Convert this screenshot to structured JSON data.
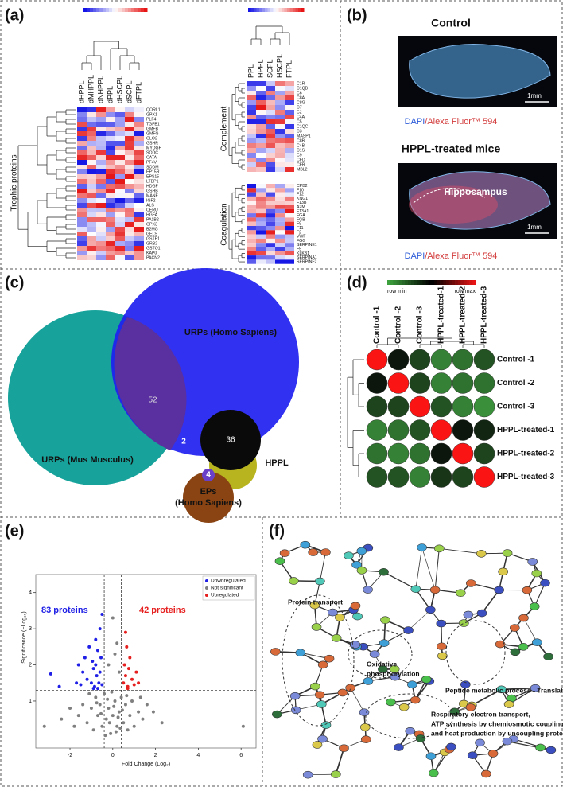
{
  "panel_a": {
    "label": "(a)",
    "left": {
      "group": "Trophic proteins",
      "columns": [
        "dHPPL",
        "dMHPPL",
        "dNHPPL",
        "dPPL",
        "dHSCPL",
        "dSCPL",
        "dFTPL"
      ],
      "rows": [
        "QORL1",
        "GPX1",
        "PLF4",
        "TGFB1",
        "GMFB",
        "GMFG",
        "GLO2",
        "GSHR",
        "MYDGF",
        "SODC",
        "CATA",
        "PF4V",
        "SODM",
        "EP15R",
        "EPS15",
        "LTBP1",
        "HDGF",
        "GSHB",
        "MANF",
        "IGF2",
        "ALS",
        "CERU",
        "HGFA",
        "PA1B2",
        "GPX3",
        "B2MG",
        "GELS",
        "GSTP1",
        "GRB2",
        "GSTO1",
        "KAP0",
        "PACN2"
      ]
    },
    "right": {
      "columns": [
        "PPL",
        "HPPL",
        "SCPL",
        "HSCPL",
        "FTPL"
      ],
      "complement": {
        "group": "Complement",
        "rows": [
          "C1R",
          "C1QB",
          "C6",
          "C8A",
          "C8G",
          "C7",
          "C2",
          "C4A",
          "C5",
          "C1QC",
          "C3",
          "MASP1",
          "C8B",
          "C4B",
          "C1S",
          "C9",
          "CFD",
          "CFB",
          "MBL2"
        ]
      },
      "coagulation": {
        "group": "Coagulation",
        "rows": [
          "CPB2",
          "F10",
          "F12",
          "KNG1",
          "F13B",
          "A2M",
          "F13A1",
          "FGA",
          "FGB",
          "F9",
          "F11",
          "F2",
          "VWF",
          "FGG",
          "SERPINE1",
          "F5",
          "KLKB1",
          "SERPINA1",
          "SERPINF2"
        ]
      }
    }
  },
  "panel_b": {
    "label": "(b)",
    "top": {
      "title": "Control",
      "stain_a": "DAPI",
      "stain_b": "/Alexa Fluor™ 594",
      "scale": "1mm"
    },
    "bottom": {
      "title": "HPPL-treated mice",
      "region": "Hippocampus",
      "stain_a": "DAPI",
      "stain_b": "/Alexa Fluor™ 594",
      "scale": "1mm"
    }
  },
  "panel_c": {
    "label": "(c)",
    "sets": [
      {
        "label": [
          "URPs (Homo Sapiens)"
        ]
      },
      {
        "label": [
          "URPs (Mus Musculus)"
        ]
      },
      {
        "label": [
          "HPPL"
        ]
      },
      {
        "label": [
          "EPs",
          "(Homo Sapiens)"
        ]
      }
    ],
    "counts": [
      52,
      2,
      36,
      4
    ]
  },
  "panel_d": {
    "label": "(d)",
    "legend_min": "row min",
    "legend_max": "row max",
    "samples": [
      "Control -1",
      "Control -2",
      "Control -3",
      "HPPL-treated-1",
      "HPPL-treated-2",
      "HPPL-treated-3"
    ],
    "matrix": [
      [
        1,
        0.5,
        0.35,
        0.15,
        0.2,
        0.3
      ],
      [
        0.5,
        1,
        0.35,
        0.15,
        0.2,
        0.2
      ],
      [
        0.35,
        0.35,
        1,
        0.3,
        0.15,
        0.1
      ],
      [
        0.15,
        0.2,
        0.3,
        1,
        0.5,
        0.45
      ],
      [
        0.2,
        0.15,
        0.2,
        0.5,
        1,
        0.35
      ],
      [
        0.3,
        0.3,
        0.15,
        0.4,
        0.35,
        1
      ]
    ]
  },
  "panel_e": {
    "label": "(e)",
    "chart_data": {
      "type": "scatter",
      "x_label": "Fold Change (Log₂)",
      "y_label": "Significance (−Log₁₀)",
      "xlim": [
        -3.6,
        6.7
      ],
      "ylim": [
        -0.3,
        4.5
      ],
      "xticks": [
        -2,
        0,
        2,
        4,
        6
      ],
      "yticks": [
        1,
        2,
        3,
        4
      ],
      "thresholds": {
        "x": [
          -0.4,
          0.4
        ],
        "y": 1.3
      },
      "annotations": [
        "83 proteins",
        "42 proteins"
      ],
      "series": [
        {
          "name": "Downregulated",
          "color": "#1f1fe6",
          "points": [
            [
              -2.9,
              1.75
            ],
            [
              -2.5,
              1.4
            ],
            [
              -1.6,
              2.0
            ],
            [
              -1.4,
              1.8
            ],
            [
              -1.3,
              2.2
            ],
            [
              -1.2,
              1.6
            ],
            [
              -1.1,
              2.5
            ],
            [
              -1.0,
              1.5
            ],
            [
              -0.95,
              2.1
            ],
            [
              -0.9,
              1.9
            ],
            [
              -0.85,
              1.4
            ],
            [
              -0.8,
              2.7
            ],
            [
              -0.75,
              1.7
            ],
            [
              -0.7,
              2.4
            ],
            [
              -0.65,
              1.5
            ],
            [
              -0.6,
              3.0
            ],
            [
              -0.6,
              1.8
            ],
            [
              -0.55,
              2.2
            ],
            [
              -0.5,
              1.45
            ],
            [
              -0.5,
              3.4
            ],
            [
              -1.5,
              1.45
            ],
            [
              -0.9,
              1.35
            ],
            [
              -0.7,
              1.35
            ],
            [
              -1.7,
              1.5
            ],
            [
              -0.8,
              2.0
            ]
          ]
        },
        {
          "name": "Not significant",
          "color": "#7f7f7f",
          "points": [
            [
              -1.2,
              0.4
            ],
            [
              -1.0,
              0.8
            ],
            [
              -0.9,
              0.2
            ],
            [
              -0.8,
              1.1
            ],
            [
              -0.7,
              0.6
            ],
            [
              -0.6,
              0.9
            ],
            [
              -0.5,
              0.3
            ],
            [
              -0.4,
              1.2
            ],
            [
              -0.3,
              0.5
            ],
            [
              -0.2,
              0.8
            ],
            [
              -0.1,
              0.1
            ],
            [
              0.0,
              0.6
            ],
            [
              0.1,
              1.0
            ],
            [
              0.2,
              0.3
            ],
            [
              0.3,
              0.7
            ],
            [
              0.4,
              1.1
            ],
            [
              0.5,
              0.4
            ],
            [
              0.6,
              0.9
            ],
            [
              0.7,
              0.2
            ],
            [
              0.8,
              0.6
            ],
            [
              0.9,
              1.0
            ],
            [
              1.0,
              0.3
            ],
            [
              1.2,
              0.7
            ],
            [
              1.4,
              0.5
            ],
            [
              -1.4,
              0.9
            ],
            [
              -1.6,
              0.6
            ],
            [
              -1.8,
              0.3
            ],
            [
              -0.35,
              0.05
            ],
            [
              0.15,
              0.15
            ],
            [
              -0.15,
              0.4
            ],
            [
              0.25,
              0.55
            ],
            [
              -0.55,
              0.65
            ],
            [
              0.45,
              0.75
            ],
            [
              -0.75,
              0.95
            ],
            [
              0.65,
              1.15
            ],
            [
              -0.05,
              1.25
            ],
            [
              0.05,
              0.85
            ],
            [
              -0.25,
              1.05
            ],
            [
              0.35,
              0.25
            ],
            [
              1.6,
              0.9
            ],
            [
              -2.0,
              0.8
            ],
            [
              -1.1,
              1.2
            ],
            [
              1.3,
              1.1
            ],
            [
              6.1,
              0.3
            ],
            [
              -3.2,
              0.3
            ],
            [
              -2.4,
              0.5
            ],
            [
              1.9,
              0.7
            ],
            [
              2.3,
              0.4
            ],
            [
              0.1,
              2.3
            ],
            [
              0.2,
              2.6
            ],
            [
              0.0,
              3.3
            ],
            [
              -0.2,
              2.0
            ],
            [
              0.3,
              1.8
            ]
          ]
        },
        {
          "name": "Upregulated",
          "color": "#e61f1f",
          "points": [
            [
              0.5,
              1.5
            ],
            [
              0.55,
              2.0
            ],
            [
              0.6,
              1.7
            ],
            [
              0.65,
              2.5
            ],
            [
              0.7,
              1.4
            ],
            [
              0.75,
              1.9
            ],
            [
              0.8,
              2.2
            ],
            [
              0.9,
              1.6
            ],
            [
              1.0,
              1.45
            ],
            [
              1.1,
              1.8
            ],
            [
              0.6,
              2.9
            ],
            [
              0.7,
              1.35
            ],
            [
              1.2,
              1.5
            ]
          ]
        }
      ]
    }
  },
  "panel_f": {
    "label": "(f)",
    "clusters": [
      {
        "label": [
          "Protein transport"
        ]
      },
      {
        "label": [
          "Oxidative",
          "phosphorylation"
        ]
      },
      {
        "label": [
          "Peptide metabolic process - Translation"
        ]
      },
      {
        "label": [
          "Respiratory electron transport,",
          "ATP synthesis by chemiosmotic coupling,",
          "and heat production by uncoupling proteins"
        ]
      }
    ]
  }
}
